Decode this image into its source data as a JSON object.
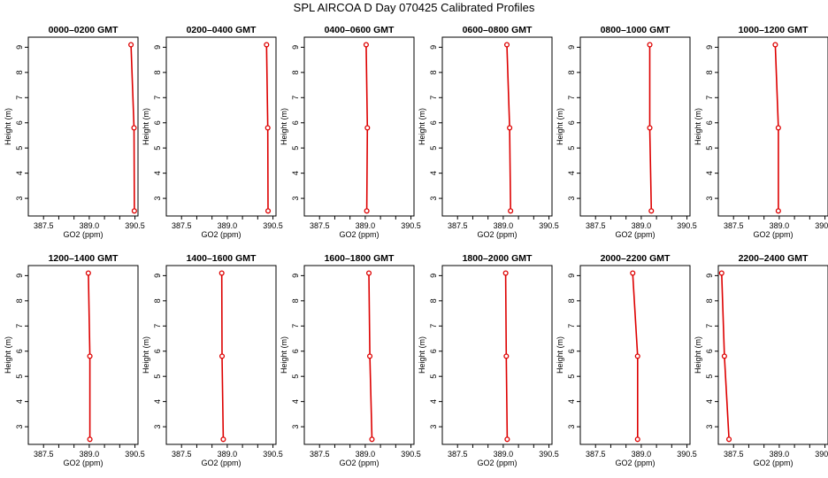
{
  "figure_title": "SPL AIRCOA D  Day 070425  Calibrated Profiles",
  "colors": {
    "profile": "#dd0000",
    "axes": "#000000",
    "background": "#ffffff"
  },
  "chart_data": [
    {
      "type": "line",
      "title": "0000–0200 GMT",
      "xlabel": "GO2 (ppm)",
      "ylabel": "Height (m)",
      "xlim": [
        387.0,
        390.6
      ],
      "ylim": [
        2.3,
        9.4
      ],
      "xticks": [
        387.5,
        388.0,
        388.5,
        389.0,
        389.5,
        390.0,
        390.5
      ],
      "xtick_labels": [
        "387.5",
        "",
        "",
        "389.0",
        "",
        "",
        "390.5"
      ],
      "yticks": [
        3,
        4,
        5,
        6,
        7,
        8,
        9
      ],
      "ytick_labels": [
        "3",
        "4",
        "5",
        "6",
        "7",
        "8",
        "9"
      ],
      "x": [
        390.48,
        390.47,
        390.37
      ],
      "y": [
        2.5,
        5.8,
        9.1
      ],
      "grid": false
    },
    {
      "type": "line",
      "title": "0200–0400 GMT",
      "xlabel": "GO2 (ppm)",
      "ylabel": "Height (m)",
      "xlim": [
        387.0,
        390.6
      ],
      "ylim": [
        2.3,
        9.4
      ],
      "xticks": [
        387.5,
        388.0,
        388.5,
        389.0,
        389.5,
        390.0,
        390.5
      ],
      "xtick_labels": [
        "387.5",
        "",
        "",
        "389.0",
        "",
        "",
        "390.5"
      ],
      "yticks": [
        3,
        4,
        5,
        6,
        7,
        8,
        9
      ],
      "ytick_labels": [
        "3",
        "4",
        "5",
        "6",
        "7",
        "8",
        "9"
      ],
      "x": [
        390.34,
        390.33,
        390.29
      ],
      "y": [
        2.5,
        5.8,
        9.1
      ],
      "grid": false
    },
    {
      "type": "line",
      "title": "0400–0600 GMT",
      "xlabel": "GO2 (ppm)",
      "ylabel": "Height (m)",
      "xlim": [
        387.0,
        390.6
      ],
      "ylim": [
        2.3,
        9.4
      ],
      "xticks": [
        387.5,
        388.0,
        388.5,
        389.0,
        389.5,
        390.0,
        390.5
      ],
      "xtick_labels": [
        "387.5",
        "",
        "",
        "389.0",
        "",
        "",
        "390.5"
      ],
      "yticks": [
        3,
        4,
        5,
        6,
        7,
        8,
        9
      ],
      "ytick_labels": [
        "3",
        "4",
        "5",
        "6",
        "7",
        "8",
        "9"
      ],
      "x": [
        389.05,
        389.07,
        389.03
      ],
      "y": [
        2.5,
        5.8,
        9.1
      ],
      "grid": false
    },
    {
      "type": "line",
      "title": "0600–0800 GMT",
      "xlabel": "GO2 (ppm)",
      "ylabel": "Height (m)",
      "xlim": [
        387.0,
        390.6
      ],
      "ylim": [
        2.3,
        9.4
      ],
      "xticks": [
        387.5,
        388.0,
        388.5,
        389.0,
        389.5,
        390.0,
        390.5
      ],
      "xtick_labels": [
        "387.5",
        "",
        "",
        "389.0",
        "",
        "",
        "390.5"
      ],
      "yticks": [
        3,
        4,
        5,
        6,
        7,
        8,
        9
      ],
      "ytick_labels": [
        "3",
        "4",
        "5",
        "6",
        "7",
        "8",
        "9"
      ],
      "x": [
        389.24,
        389.21,
        389.12
      ],
      "y": [
        2.5,
        5.8,
        9.1
      ],
      "grid": false
    },
    {
      "type": "line",
      "title": "0800–1000 GMT",
      "xlabel": "GO2 (ppm)",
      "ylabel": "Height (m)",
      "xlim": [
        387.0,
        390.6
      ],
      "ylim": [
        2.3,
        9.4
      ],
      "xticks": [
        387.5,
        388.0,
        388.5,
        389.0,
        389.5,
        390.0,
        390.5
      ],
      "xtick_labels": [
        "387.5",
        "",
        "",
        "389.0",
        "",
        "",
        "390.5"
      ],
      "yticks": [
        3,
        4,
        5,
        6,
        7,
        8,
        9
      ],
      "ytick_labels": [
        "3",
        "4",
        "5",
        "6",
        "7",
        "8",
        "9"
      ],
      "x": [
        389.33,
        389.28,
        389.28
      ],
      "y": [
        2.5,
        5.8,
        9.1
      ],
      "grid": false
    },
    {
      "type": "line",
      "title": "1000–1200 GMT",
      "xlabel": "GO2 (ppm)",
      "ylabel": "Height (m)",
      "xlim": [
        387.0,
        390.6
      ],
      "ylim": [
        2.3,
        9.4
      ],
      "xticks": [
        387.5,
        388.0,
        388.5,
        389.0,
        389.5,
        390.0,
        390.5
      ],
      "xtick_labels": [
        "387.5",
        "",
        "",
        "389.0",
        "",
        "",
        "390.5"
      ],
      "yticks": [
        3,
        4,
        5,
        6,
        7,
        8,
        9
      ],
      "ytick_labels": [
        "3",
        "4",
        "5",
        "6",
        "7",
        "8",
        "9"
      ],
      "x": [
        388.97,
        388.97,
        388.87
      ],
      "y": [
        2.5,
        5.8,
        9.1
      ],
      "grid": false
    },
    {
      "type": "line",
      "title": "1200–1400 GMT",
      "xlabel": "GO2 (ppm)",
      "ylabel": "Height (m)",
      "xlim": [
        387.0,
        390.6
      ],
      "ylim": [
        2.3,
        9.4
      ],
      "xticks": [
        387.5,
        388.0,
        388.5,
        389.0,
        389.5,
        390.0,
        390.5
      ],
      "xtick_labels": [
        "387.5",
        "",
        "",
        "389.0",
        "",
        "",
        "390.5"
      ],
      "yticks": [
        3,
        4,
        5,
        6,
        7,
        8,
        9
      ],
      "ytick_labels": [
        "3",
        "4",
        "5",
        "6",
        "7",
        "8",
        "9"
      ],
      "x": [
        389.02,
        389.02,
        388.97
      ],
      "y": [
        2.5,
        5.8,
        9.1
      ],
      "grid": false
    },
    {
      "type": "line",
      "title": "1400–1600 GMT",
      "xlabel": "GO2 (ppm)",
      "ylabel": "Height (m)",
      "xlim": [
        387.0,
        390.6
      ],
      "ylim": [
        2.3,
        9.4
      ],
      "xticks": [
        387.5,
        388.0,
        388.5,
        389.0,
        389.5,
        390.0,
        390.5
      ],
      "xtick_labels": [
        "387.5",
        "",
        "",
        "389.0",
        "",
        "",
        "390.5"
      ],
      "yticks": [
        3,
        4,
        5,
        6,
        7,
        8,
        9
      ],
      "ytick_labels": [
        "3",
        "4",
        "5",
        "6",
        "7",
        "8",
        "9"
      ],
      "x": [
        388.87,
        388.83,
        388.82
      ],
      "y": [
        2.5,
        5.8,
        9.1
      ],
      "grid": false
    },
    {
      "type": "line",
      "title": "1600–1800 GMT",
      "xlabel": "GO2 (ppm)",
      "ylabel": "Height (m)",
      "xlim": [
        387.0,
        390.6
      ],
      "ylim": [
        2.3,
        9.4
      ],
      "xticks": [
        387.5,
        388.0,
        388.5,
        389.0,
        389.5,
        390.0,
        390.5
      ],
      "xtick_labels": [
        "387.5",
        "",
        "",
        "389.0",
        "",
        "",
        "390.5"
      ],
      "yticks": [
        3,
        4,
        5,
        6,
        7,
        8,
        9
      ],
      "ytick_labels": [
        "3",
        "4",
        "5",
        "6",
        "7",
        "8",
        "9"
      ],
      "x": [
        389.22,
        389.15,
        389.12
      ],
      "y": [
        2.5,
        5.8,
        9.1
      ],
      "grid": false
    },
    {
      "type": "line",
      "title": "1800–2000 GMT",
      "xlabel": "GO2 (ppm)",
      "ylabel": "Height (m)",
      "xlim": [
        387.0,
        390.6
      ],
      "ylim": [
        2.3,
        9.4
      ],
      "xticks": [
        387.5,
        388.0,
        388.5,
        389.0,
        389.5,
        390.0,
        390.5
      ],
      "xtick_labels": [
        "387.5",
        "",
        "",
        "389.0",
        "",
        "",
        "390.5"
      ],
      "yticks": [
        3,
        4,
        5,
        6,
        7,
        8,
        9
      ],
      "ytick_labels": [
        "3",
        "4",
        "5",
        "6",
        "7",
        "8",
        "9"
      ],
      "x": [
        389.13,
        389.1,
        389.08
      ],
      "y": [
        2.5,
        5.8,
        9.1
      ],
      "grid": false
    },
    {
      "type": "line",
      "title": "2000–2200 GMT",
      "xlabel": "GO2 (ppm)",
      "ylabel": "Height (m)",
      "xlim": [
        387.0,
        390.6
      ],
      "ylim": [
        2.3,
        9.4
      ],
      "xticks": [
        387.5,
        388.0,
        388.5,
        389.0,
        389.5,
        390.0,
        390.5
      ],
      "xtick_labels": [
        "387.5",
        "",
        "",
        "389.0",
        "",
        "",
        "390.5"
      ],
      "yticks": [
        3,
        4,
        5,
        6,
        7,
        8,
        9
      ],
      "ytick_labels": [
        "3",
        "4",
        "5",
        "6",
        "7",
        "8",
        "9"
      ],
      "x": [
        388.88,
        388.88,
        388.72
      ],
      "y": [
        2.5,
        5.8,
        9.1
      ],
      "grid": false
    },
    {
      "type": "line",
      "title": "2200–2400 GMT",
      "xlabel": "GO2 (ppm)",
      "ylabel": "Height (m)",
      "xlim": [
        387.0,
        390.6
      ],
      "ylim": [
        2.3,
        9.4
      ],
      "xticks": [
        387.5,
        388.0,
        388.5,
        389.0,
        389.5,
        390.0,
        390.5
      ],
      "xtick_labels": [
        "387.5",
        "",
        "",
        "389.0",
        "",
        "",
        "390.5"
      ],
      "yticks": [
        3,
        4,
        5,
        6,
        7,
        8,
        9
      ],
      "ytick_labels": [
        "3",
        "4",
        "5",
        "6",
        "7",
        "8",
        "9"
      ],
      "x": [
        387.35,
        387.2,
        387.11
      ],
      "y": [
        2.5,
        5.8,
        9.1
      ],
      "grid": false
    }
  ]
}
